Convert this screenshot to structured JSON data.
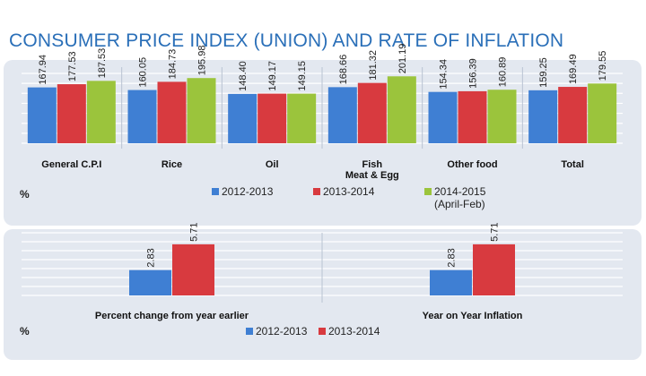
{
  "page": {
    "title": "CONSUMER PRICE INDEX (UNION) AND RATE OF INFLATION"
  },
  "colors": {
    "s2012": "#3f7fd3",
    "s2013": "#d83a3f",
    "s2014": "#9bc43c",
    "title": "#2a6fb8",
    "panel": "#e3e8f0"
  },
  "chart_data": [
    {
      "type": "bar",
      "categories": [
        "General C.P.I",
        "Rice",
        "Oil",
        "Fish Meat & Egg",
        "Other food",
        "Total"
      ],
      "series": [
        {
          "name": "2012-2013",
          "values": [
            167.94,
            160.05,
            148.4,
            168.66,
            154.34,
            159.25
          ]
        },
        {
          "name": "2013-2014",
          "values": [
            177.53,
            184.73,
            149.17,
            181.32,
            156.39,
            169.49
          ]
        },
        {
          "name": "2014-2015 (April-Feb)",
          "values": [
            187.53,
            195.98,
            149.15,
            201.19,
            160.89,
            179.55
          ]
        }
      ],
      "value_labels": [
        [
          "167.94",
          "160.05",
          "148.40",
          "168.66",
          "154.34",
          "159.25"
        ],
        [
          "177.53",
          "184.73",
          "149.17",
          "181.32",
          "156.39",
          "169.49"
        ],
        [
          "187.53",
          "195.98",
          "149.15",
          "201.19",
          "160.89",
          "179.55"
        ]
      ],
      "category_lines": [
        [
          "General C.P.I"
        ],
        [
          "Rice"
        ],
        [
          "Oil"
        ],
        [
          "Fish",
          "Meat & Egg"
        ],
        [
          "Other food"
        ],
        [
          "Total"
        ]
      ],
      "unit": "%",
      "legend": [
        {
          "label": "2012-2013",
          "sub": ""
        },
        {
          "label": "2013-2014",
          "sub": ""
        },
        {
          "label": "2014-2015",
          "sub": "(April-Feb)"
        }
      ],
      "legend_position": "bottom",
      "ylim": [
        0,
        210
      ],
      "grid": true
    },
    {
      "type": "bar",
      "categories": [
        "Percent change from year  earlier",
        "Year on Year Inflation"
      ],
      "series": [
        {
          "name": "2012-2013",
          "values": [
            2.83,
            2.83
          ]
        },
        {
          "name": "2013-2014",
          "values": [
            5.71,
            5.71
          ]
        }
      ],
      "value_labels": [
        [
          "2.83",
          "2.83"
        ],
        [
          "5.71",
          "5.71"
        ]
      ],
      "category_lines": [
        [
          "Percent change from year  earlier"
        ],
        [
          "Year on Year Inflation"
        ]
      ],
      "unit": "%",
      "legend": [
        {
          "label": "2012-2013",
          "sub": ""
        },
        {
          "label": "2013-2014",
          "sub": ""
        }
      ],
      "legend_position": "bottom",
      "ylim": [
        0,
        7
      ],
      "grid": true
    }
  ]
}
